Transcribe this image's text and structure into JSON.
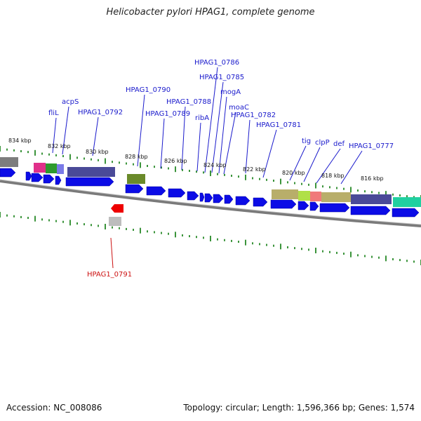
{
  "title": "Helicobacter pylori HPAG1, complete genome",
  "accession": "Accession: NC_008086",
  "summary": "Topology: circular; Length: 1,596,366 bp; Genes: 1,574",
  "colors": {
    "forward_gene": "#0c0ce6",
    "reverse_gene": "#ee0000",
    "label_forward": "#1a1acc",
    "label_reverse": "#cc1111",
    "tick": "#0a7a0a",
    "backbone": "#888888"
  },
  "scale_labels": [
    "834 kbp",
    "832 kbp",
    "830 kbp",
    "828 kbp",
    "826 kbp",
    "824 kbp",
    "822 kbp",
    "820 kbp",
    "818 kbp",
    "816 kbp"
  ],
  "gene_labels": [
    "fliL",
    "acpS",
    "HPAG1_0792",
    "HPAG1_0790",
    "HPAG1_0789",
    "HPAG1_0788",
    "ribA",
    "HPAG1_0786",
    "HPAG1_0785",
    "mogA",
    "moaC",
    "HPAG1_0782",
    "HPAG1_0781",
    "tig",
    "clpP",
    "def",
    "HPAG1_0777",
    "HPAG1_0791"
  ]
}
